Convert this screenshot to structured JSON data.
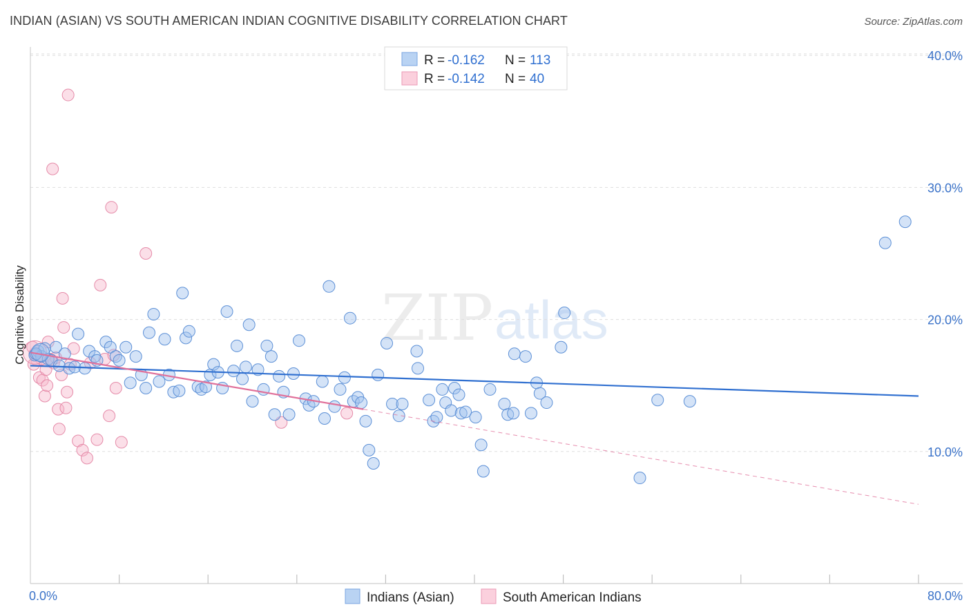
{
  "header": {
    "title": "INDIAN (ASIAN) VS SOUTH AMERICAN INDIAN COGNITIVE DISABILITY CORRELATION CHART",
    "source": "Source: ZipAtlas.com"
  },
  "watermark": {
    "zip": "ZIP",
    "atlas": "atlas"
  },
  "legend": {
    "rows": [
      {
        "r_label": "R = ",
        "r_value": "-0.162",
        "n_label": "N = ",
        "n_value": "113"
      },
      {
        "r_label": "R = ",
        "r_value": "-0.142",
        "n_label": "N = ",
        "n_value": "40"
      }
    ]
  },
  "bottom_legend": {
    "series_1": "Indians (Asian)",
    "series_2": "South American Indians"
  },
  "colors": {
    "blue_fill": "#9fc2ee",
    "blue_stroke": "#5b8fd6",
    "blue_line": "#2f6fd0",
    "pink_fill": "#f6b8cb",
    "pink_stroke": "#e58aa8",
    "pink_line": "#e0709a"
  },
  "chart_data": {
    "type": "scatter",
    "title": "INDIAN (ASIAN) VS SOUTH AMERICAN INDIAN COGNITIVE DISABILITY CORRELATION CHART",
    "xlabel": "",
    "ylabel": "Cognitive Disability",
    "xlim": [
      0,
      80
    ],
    "ylim": [
      0,
      41
    ],
    "x_tick_labels": [
      "0.0%",
      "80.0%"
    ],
    "y_ticks": [
      10,
      20,
      30,
      40
    ],
    "y_tick_labels": [
      "10.0%",
      "20.0%",
      "30.0%",
      "40.0%"
    ],
    "grid": true,
    "legend_position": "top-center",
    "series": [
      {
        "name": "Indians (Asian)",
        "r": -0.162,
        "n": 113,
        "trend": {
          "x": [
            0,
            80
          ],
          "y": [
            16.5,
            14.2
          ]
        },
        "points": [
          [
            0.4,
            17.3
          ],
          [
            0.7,
            17.6
          ],
          [
            1.0,
            17.2
          ],
          [
            1.3,
            17.8
          ],
          [
            1.6,
            17.0
          ],
          [
            1.9,
            16.9
          ],
          [
            2.3,
            17.9
          ],
          [
            2.6,
            16.5
          ],
          [
            3.1,
            17.4
          ],
          [
            3.5,
            16.3
          ],
          [
            4.0,
            16.4
          ],
          [
            4.3,
            18.9
          ],
          [
            4.9,
            16.3
          ],
          [
            5.3,
            17.6
          ],
          [
            5.8,
            17.2
          ],
          [
            6.0,
            16.9
          ],
          [
            6.8,
            18.3
          ],
          [
            7.2,
            17.9
          ],
          [
            7.7,
            17.2
          ],
          [
            8.0,
            16.9
          ],
          [
            8.6,
            17.9
          ],
          [
            9.0,
            15.2
          ],
          [
            9.5,
            17.2
          ],
          [
            10.0,
            15.8
          ],
          [
            10.4,
            14.8
          ],
          [
            10.7,
            19.0
          ],
          [
            11.1,
            20.4
          ],
          [
            11.6,
            15.3
          ],
          [
            12.1,
            18.5
          ],
          [
            12.5,
            15.8
          ],
          [
            12.9,
            14.5
          ],
          [
            13.4,
            14.6
          ],
          [
            13.7,
            22.0
          ],
          [
            14.0,
            18.6
          ],
          [
            14.3,
            19.1
          ],
          [
            15.1,
            14.9
          ],
          [
            15.4,
            14.7
          ],
          [
            15.8,
            14.9
          ],
          [
            16.2,
            15.8
          ],
          [
            16.5,
            16.6
          ],
          [
            16.9,
            16.0
          ],
          [
            17.3,
            14.8
          ],
          [
            17.7,
            20.6
          ],
          [
            18.3,
            16.1
          ],
          [
            18.6,
            18.0
          ],
          [
            19.1,
            15.5
          ],
          [
            19.4,
            16.4
          ],
          [
            19.7,
            19.6
          ],
          [
            20.0,
            13.8
          ],
          [
            20.5,
            16.2
          ],
          [
            21.0,
            14.7
          ],
          [
            21.3,
            18.0
          ],
          [
            21.7,
            17.2
          ],
          [
            22.0,
            12.8
          ],
          [
            22.4,
            15.7
          ],
          [
            22.8,
            14.5
          ],
          [
            23.3,
            12.8
          ],
          [
            23.7,
            15.9
          ],
          [
            24.2,
            18.4
          ],
          [
            24.8,
            14.0
          ],
          [
            25.1,
            13.5
          ],
          [
            25.5,
            13.8
          ],
          [
            26.3,
            15.3
          ],
          [
            26.5,
            12.5
          ],
          [
            26.9,
            22.5
          ],
          [
            27.4,
            13.4
          ],
          [
            27.9,
            14.7
          ],
          [
            28.3,
            15.6
          ],
          [
            28.8,
            20.1
          ],
          [
            29.1,
            13.8
          ],
          [
            29.5,
            14.1
          ],
          [
            29.8,
            13.7
          ],
          [
            30.2,
            12.3
          ],
          [
            30.5,
            10.1
          ],
          [
            30.9,
            9.1
          ],
          [
            31.3,
            15.8
          ],
          [
            32.1,
            18.2
          ],
          [
            32.6,
            13.6
          ],
          [
            33.2,
            12.7
          ],
          [
            33.5,
            13.6
          ],
          [
            34.8,
            17.6
          ],
          [
            34.9,
            16.3
          ],
          [
            35.9,
            13.9
          ],
          [
            36.3,
            12.3
          ],
          [
            36.6,
            12.6
          ],
          [
            37.1,
            14.7
          ],
          [
            37.4,
            13.7
          ],
          [
            37.9,
            13.1
          ],
          [
            38.2,
            14.8
          ],
          [
            38.6,
            14.3
          ],
          [
            38.8,
            12.9
          ],
          [
            39.2,
            13.0
          ],
          [
            40.1,
            12.6
          ],
          [
            40.6,
            10.5
          ],
          [
            40.8,
            8.5
          ],
          [
            41.4,
            14.7
          ],
          [
            42.7,
            13.6
          ],
          [
            43.0,
            12.8
          ],
          [
            43.6,
            17.4
          ],
          [
            43.5,
            12.9
          ],
          [
            44.6,
            17.2
          ],
          [
            45.1,
            12.9
          ],
          [
            45.6,
            15.2
          ],
          [
            45.9,
            14.4
          ],
          [
            46.5,
            13.7
          ],
          [
            47.8,
            17.9
          ],
          [
            48.1,
            20.5
          ],
          [
            54.9,
            8.0
          ],
          [
            56.5,
            13.9
          ],
          [
            59.4,
            13.8
          ],
          [
            77.0,
            25.8
          ],
          [
            78.8,
            27.4
          ],
          [
            0.5,
            17.4
          ]
        ]
      },
      {
        "name": "South American Indians",
        "r": -0.142,
        "n": 40,
        "trend": {
          "x": [
            0,
            30
          ],
          "y": [
            17.5,
            13.2
          ]
        },
        "trend_dashed": {
          "x": [
            30,
            80
          ],
          "y": [
            13.2,
            6.0
          ]
        },
        "points": [
          [
            0.2,
            17.9
          ],
          [
            0.4,
            17.4
          ],
          [
            0.6,
            16.9
          ],
          [
            0.8,
            15.6
          ],
          [
            1.0,
            17.0
          ],
          [
            1.1,
            15.4
          ],
          [
            1.3,
            14.2
          ],
          [
            1.4,
            16.2
          ],
          [
            1.5,
            15.0
          ],
          [
            1.6,
            18.3
          ],
          [
            1.8,
            17.0
          ],
          [
            2.0,
            31.4
          ],
          [
            2.1,
            16.7
          ],
          [
            2.3,
            17.1
          ],
          [
            2.5,
            13.2
          ],
          [
            2.6,
            11.7
          ],
          [
            2.8,
            15.8
          ],
          [
            2.9,
            21.6
          ],
          [
            3.0,
            19.4
          ],
          [
            3.2,
            13.3
          ],
          [
            3.3,
            14.5
          ],
          [
            3.4,
            37.0
          ],
          [
            3.6,
            16.6
          ],
          [
            3.9,
            17.8
          ],
          [
            4.3,
            10.8
          ],
          [
            4.7,
            10.1
          ],
          [
            5.1,
            9.5
          ],
          [
            5.4,
            16.7
          ],
          [
            6.0,
            10.9
          ],
          [
            6.3,
            22.6
          ],
          [
            6.7,
            17.0
          ],
          [
            7.1,
            12.7
          ],
          [
            7.3,
            28.5
          ],
          [
            7.5,
            17.3
          ],
          [
            7.7,
            14.8
          ],
          [
            8.2,
            10.7
          ],
          [
            10.4,
            25.0
          ],
          [
            22.6,
            12.2
          ],
          [
            28.5,
            12.9
          ],
          [
            0.3,
            16.6
          ]
        ]
      }
    ]
  }
}
